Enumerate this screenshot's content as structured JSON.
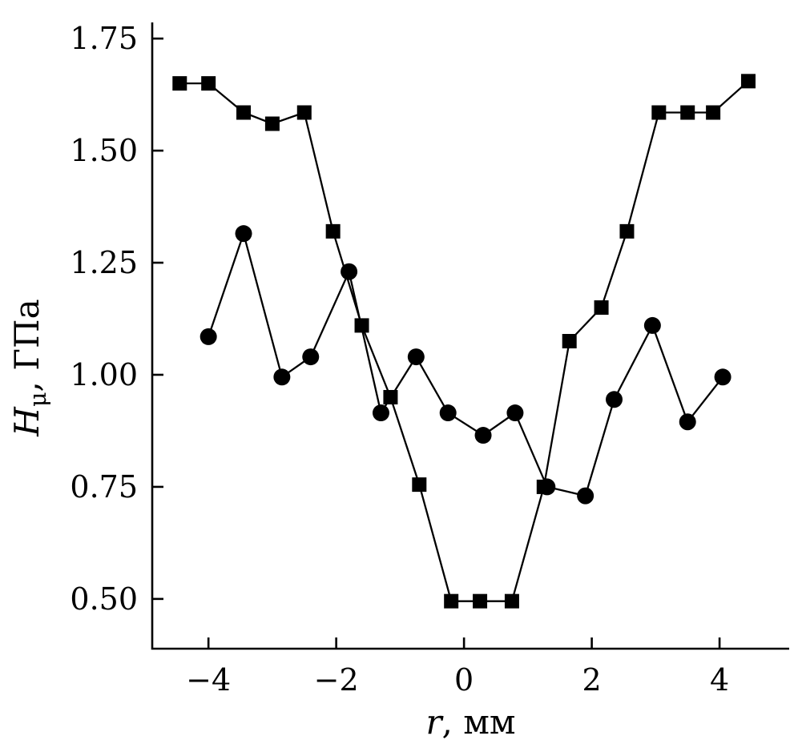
{
  "chart_data": {
    "type": "scatter",
    "title": "",
    "xlabel_italic": "r",
    "xlabel_rest": ", мм",
    "ylabel_italic": "H",
    "ylabel_sub": "μ",
    "ylabel_rest": ", ГПа",
    "xlim": [
      -4.88,
      5.09
    ],
    "ylim": [
      0.389,
      1.786
    ],
    "xticks": [
      -4,
      -2,
      0,
      2,
      4
    ],
    "xtick_labels": [
      "−4",
      "−2",
      "0",
      "2",
      "4"
    ],
    "yticks": [
      0.5,
      0.75,
      1.0,
      1.25,
      1.5,
      1.75
    ],
    "ytick_labels": [
      "0.50",
      "0.75",
      "1.00",
      "1.25",
      "1.50",
      "1.75"
    ],
    "grid": false,
    "legend_position": "none",
    "line_color": "#000000",
    "series": [
      {
        "name": "squares",
        "marker": "square",
        "color": "#000000",
        "points": [
          [
            -4.45,
            1.65
          ],
          [
            -4.0,
            1.65
          ],
          [
            -3.45,
            1.585
          ],
          [
            -3.0,
            1.56
          ],
          [
            -2.5,
            1.585
          ],
          [
            -2.05,
            1.32
          ],
          [
            -1.6,
            1.11
          ],
          [
            -1.15,
            0.95
          ],
          [
            -0.7,
            0.755
          ],
          [
            -0.2,
            0.495
          ],
          [
            0.25,
            0.495
          ],
          [
            0.75,
            0.495
          ],
          [
            1.25,
            0.75
          ],
          [
            1.65,
            1.075
          ],
          [
            2.15,
            1.15
          ],
          [
            2.55,
            1.32
          ],
          [
            3.05,
            1.585
          ],
          [
            3.5,
            1.585
          ],
          [
            3.9,
            1.585
          ],
          [
            4.45,
            1.655
          ]
        ]
      },
      {
        "name": "circles",
        "marker": "circle",
        "color": "#000000",
        "points": [
          [
            -4.0,
            1.085
          ],
          [
            -3.45,
            1.315
          ],
          [
            -2.85,
            0.995
          ],
          [
            -2.4,
            1.04
          ],
          [
            -1.8,
            1.23
          ],
          [
            -1.3,
            0.915
          ],
          [
            -0.75,
            1.04
          ],
          [
            -0.25,
            0.915
          ],
          [
            0.3,
            0.865
          ],
          [
            0.8,
            0.915
          ],
          [
            1.3,
            0.75
          ],
          [
            1.9,
            0.73
          ],
          [
            2.35,
            0.945
          ],
          [
            2.95,
            1.11
          ],
          [
            3.5,
            0.895
          ],
          [
            4.05,
            0.995
          ]
        ]
      }
    ]
  }
}
